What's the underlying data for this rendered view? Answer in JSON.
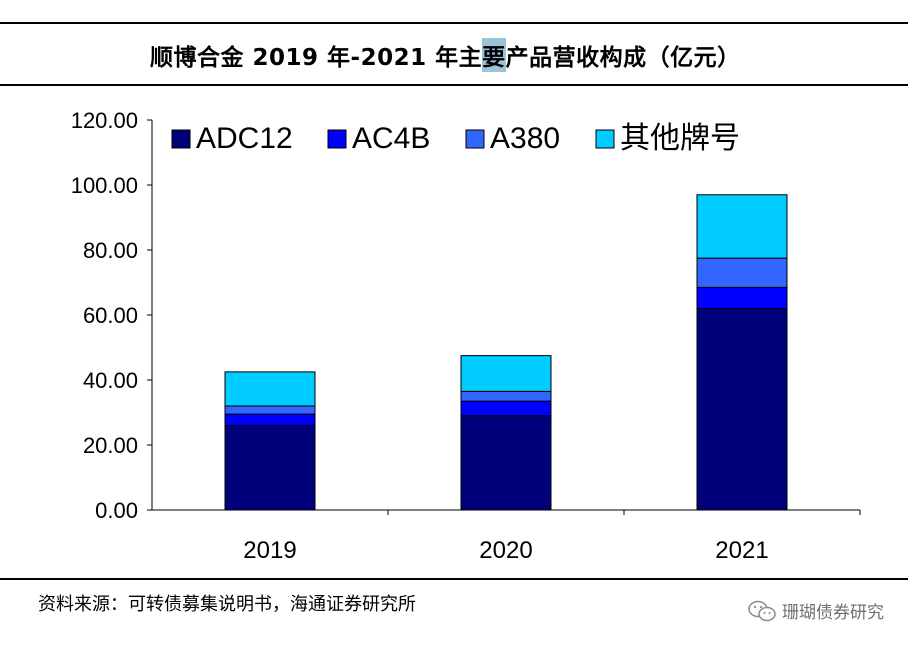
{
  "header": {
    "title_part1": "顺博合金 2019 年-2021 年主",
    "title_highlight": "要",
    "title_part2": "产品营收构成（亿元）"
  },
  "chart_data": {
    "type": "bar",
    "stacked": true,
    "categories": [
      "2019",
      "2020",
      "2021"
    ],
    "series": [
      {
        "name": "ADC12",
        "color": "#00007a",
        "values": [
          26.0,
          29.0,
          62.0
        ]
      },
      {
        "name": "AC4B",
        "color": "#0000ff",
        "values": [
          3.5,
          4.5,
          6.5
        ]
      },
      {
        "name": "A380",
        "color": "#3366ff",
        "values": [
          2.5,
          3.0,
          9.0
        ]
      },
      {
        "name": "其他牌号",
        "color": "#00ccff",
        "values": [
          10.5,
          11.0,
          19.5
        ]
      }
    ],
    "ylim": [
      0,
      120
    ],
    "yticks": [
      "0.00",
      "20.00",
      "40.00",
      "60.00",
      "80.00",
      "100.00",
      "120.00"
    ],
    "legend_position": "top-left inside",
    "xlabel": "",
    "ylabel": ""
  },
  "footer": {
    "source": "资料来源：可转债募集说明书，海通证券研究所",
    "watermark": "珊瑚债券研究",
    "watermark_icon": "wechat-icon"
  }
}
